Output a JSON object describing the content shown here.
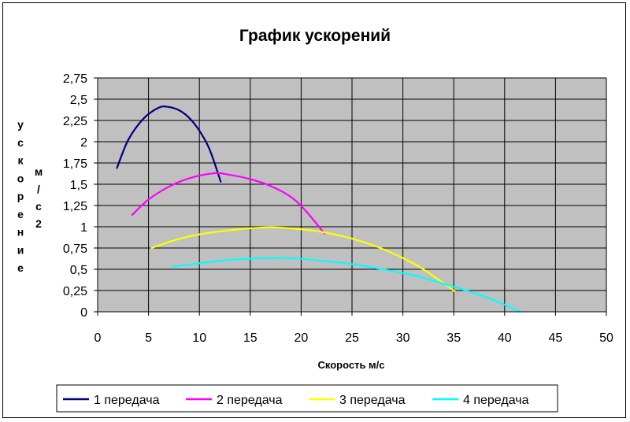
{
  "chart_data": {
    "type": "line",
    "title": "График ускорений",
    "xlabel": "Скорость м/с",
    "ylabel_left": "ускорение",
    "ylabel_unit": "м/с2",
    "xlim": [
      0,
      50
    ],
    "ylim": [
      0,
      2.75
    ],
    "x_ticks": [
      "0",
      "5",
      "10",
      "15",
      "20",
      "25",
      "30",
      "35",
      "40",
      "45",
      "50"
    ],
    "y_ticks": [
      "0",
      "0,25",
      "0,5",
      "0,75",
      "1",
      "1,25",
      "1,5",
      "1,75",
      "2",
      "2,25",
      "2,5",
      "2,75"
    ],
    "grid": true,
    "plot_background": "#c0c0c0",
    "legend_position": "bottom",
    "series": [
      {
        "name": "1 передача",
        "color": "#000080",
        "points": [
          [
            1.9,
            1.69
          ],
          [
            3,
            2.02
          ],
          [
            4.5,
            2.27
          ],
          [
            6,
            2.4
          ],
          [
            6.9,
            2.41
          ],
          [
            8,
            2.37
          ],
          [
            9,
            2.28
          ],
          [
            10,
            2.13
          ],
          [
            11,
            1.91
          ],
          [
            12.1,
            1.53
          ]
        ]
      },
      {
        "name": "2 передача",
        "color": "#ff00ff",
        "points": [
          [
            3.4,
            1.14
          ],
          [
            5,
            1.32
          ],
          [
            7,
            1.47
          ],
          [
            9,
            1.57
          ],
          [
            11.5,
            1.63
          ],
          [
            13,
            1.61
          ],
          [
            15,
            1.56
          ],
          [
            17,
            1.48
          ],
          [
            19,
            1.35
          ],
          [
            20.5,
            1.18
          ],
          [
            22.3,
            0.92
          ]
        ]
      },
      {
        "name": "3 передача",
        "color": "#ffff00",
        "points": [
          [
            5.3,
            0.75
          ],
          [
            7.5,
            0.84
          ],
          [
            10,
            0.91
          ],
          [
            13,
            0.96
          ],
          [
            16,
            0.99
          ],
          [
            18,
            0.99
          ],
          [
            20,
            0.97
          ],
          [
            22,
            0.94
          ],
          [
            25,
            0.86
          ],
          [
            28,
            0.74
          ],
          [
            31,
            0.57
          ],
          [
            33,
            0.42
          ],
          [
            35.1,
            0.24
          ]
        ]
      },
      {
        "name": "4 передача",
        "color": "#00ffff",
        "points": [
          [
            7.3,
            0.53
          ],
          [
            10,
            0.57
          ],
          [
            13,
            0.61
          ],
          [
            16,
            0.63
          ],
          [
            19,
            0.63
          ],
          [
            22,
            0.6
          ],
          [
            25,
            0.56
          ],
          [
            28,
            0.5
          ],
          [
            31,
            0.43
          ],
          [
            34,
            0.33
          ],
          [
            37,
            0.22
          ],
          [
            39.5,
            0.11
          ],
          [
            41.5,
            0.0
          ]
        ]
      }
    ]
  }
}
